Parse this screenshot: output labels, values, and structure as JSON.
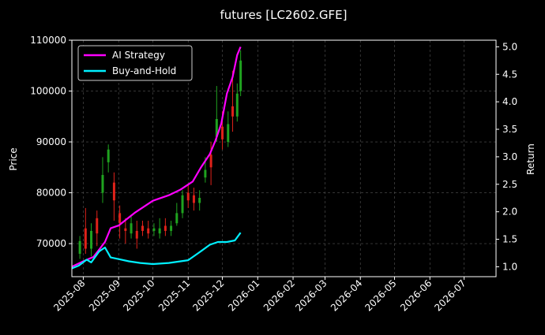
{
  "chart_data": {
    "type": "line",
    "title": "futures [LC2602.GFE]",
    "ylabel_left": "Price",
    "ylabel_right": "Return",
    "ylim_left": [
      63500,
      110000
    ],
    "ylim_right": [
      0.82,
      5.12
    ],
    "xlim": [
      "2025-07-22",
      "2026-07-29"
    ],
    "grid": true,
    "legend_position": "top-left",
    "colors": {
      "background": "#000000",
      "strategy": "#ff00ff",
      "buyhold": "#00f0ff",
      "up": "#1fa31f",
      "down": "#e0221a"
    },
    "x_ticks": [
      "2025-08",
      "2025-09",
      "2025-10",
      "2025-11",
      "2025-12",
      "2026-01",
      "2026-02",
      "2026-03",
      "2026-04",
      "2026-05",
      "2026-06",
      "2026-07"
    ],
    "y_ticks_left": [
      70000,
      80000,
      90000,
      100000,
      110000
    ],
    "y_ticks_right": [
      "1.0",
      "1.5",
      "2.0",
      "2.5",
      "3.0",
      "3.5",
      "4.0",
      "4.5",
      "5.0"
    ],
    "series": [
      {
        "name": "AI Strategy",
        "axis": "right",
        "points": [
          [
            "2025-07-22",
            1.0
          ],
          [
            "2025-08-01",
            1.1
          ],
          [
            "2025-08-10",
            1.18
          ],
          [
            "2025-08-20",
            1.45
          ],
          [
            "2025-08-25",
            1.7
          ],
          [
            "2025-09-01",
            1.75
          ],
          [
            "2025-09-15",
            1.98
          ],
          [
            "2025-10-01",
            2.2
          ],
          [
            "2025-10-15",
            2.3
          ],
          [
            "2025-10-25",
            2.4
          ],
          [
            "2025-11-05",
            2.55
          ],
          [
            "2025-11-12",
            2.8
          ],
          [
            "2025-11-20",
            3.05
          ],
          [
            "2025-11-25",
            3.3
          ],
          [
            "2025-11-30",
            3.6
          ],
          [
            "2025-12-05",
            4.15
          ],
          [
            "2025-12-10",
            4.45
          ],
          [
            "2025-12-14",
            4.85
          ],
          [
            "2025-12-17",
            5.0
          ]
        ]
      },
      {
        "name": "Buy-and-Hold",
        "axis": "right",
        "points": [
          [
            "2025-07-22",
            0.97
          ],
          [
            "2025-07-28",
            1.02
          ],
          [
            "2025-08-04",
            1.13
          ],
          [
            "2025-08-08",
            1.08
          ],
          [
            "2025-08-15",
            1.28
          ],
          [
            "2025-08-20",
            1.35
          ],
          [
            "2025-08-25",
            1.17
          ],
          [
            "2025-09-01",
            1.14
          ],
          [
            "2025-09-10",
            1.1
          ],
          [
            "2025-09-20",
            1.07
          ],
          [
            "2025-10-01",
            1.05
          ],
          [
            "2025-10-15",
            1.07
          ],
          [
            "2025-11-01",
            1.12
          ],
          [
            "2025-11-10",
            1.25
          ],
          [
            "2025-11-20",
            1.4
          ],
          [
            "2025-11-27",
            1.45
          ],
          [
            "2025-12-05",
            1.45
          ],
          [
            "2025-12-12",
            1.48
          ],
          [
            "2025-12-17",
            1.62
          ]
        ]
      }
    ],
    "candles": [
      [
        "2025-07-29",
        68000,
        70500,
        67000,
        71500
      ],
      [
        "2025-08-03",
        73000,
        69000,
        68000,
        77000
      ],
      [
        "2025-08-08",
        69000,
        72500,
        67500,
        74000
      ],
      [
        "2025-08-13",
        75000,
        72000,
        69500,
        76500
      ],
      [
        "2025-08-18",
        80000,
        83500,
        78000,
        87000
      ],
      [
        "2025-08-23",
        86000,
        88500,
        84000,
        89500
      ],
      [
        "2025-08-28",
        82000,
        78500,
        74500,
        84000
      ],
      [
        "2025-09-02",
        76000,
        74000,
        71000,
        77500
      ],
      [
        "2025-09-07",
        73000,
        72500,
        70000,
        75000
      ],
      [
        "2025-09-12",
        72000,
        74000,
        71000,
        75500
      ],
      [
        "2025-09-17",
        72500,
        71000,
        69000,
        74500
      ],
      [
        "2025-09-22",
        73500,
        72500,
        71500,
        74500
      ],
      [
        "2025-09-27",
        73000,
        72000,
        71000,
        74500
      ],
      [
        "2025-10-02",
        72500,
        73000,
        71500,
        74000
      ],
      [
        "2025-10-07",
        72000,
        73000,
        71000,
        75000
      ],
      [
        "2025-10-12",
        73500,
        72500,
        71500,
        75000
      ],
      [
        "2025-10-17",
        72500,
        73500,
        71500,
        74500
      ],
      [
        "2025-10-22",
        74000,
        76000,
        73500,
        78000
      ],
      [
        "2025-10-27",
        76000,
        79500,
        75000,
        80500
      ],
      [
        "2025-11-01",
        80000,
        78500,
        77000,
        81500
      ],
      [
        "2025-11-06",
        79500,
        78000,
        76500,
        81000
      ],
      [
        "2025-11-11",
        78000,
        79000,
        76500,
        80500
      ],
      [
        "2025-11-16",
        83000,
        84500,
        82000,
        87000
      ],
      [
        "2025-11-21",
        87500,
        85000,
        81500,
        90000
      ],
      [
        "2025-11-26",
        91000,
        94500,
        90000,
        101000
      ],
      [
        "2025-12-01",
        93000,
        90500,
        88500,
        96000
      ],
      [
        "2025-12-06",
        90000,
        93500,
        89000,
        96000
      ],
      [
        "2025-12-10",
        97000,
        95000,
        92000,
        104000
      ],
      [
        "2025-12-14",
        95000,
        99500,
        94000,
        101500
      ],
      [
        "2025-12-17",
        100000,
        106000,
        99000,
        108000
      ]
    ]
  }
}
